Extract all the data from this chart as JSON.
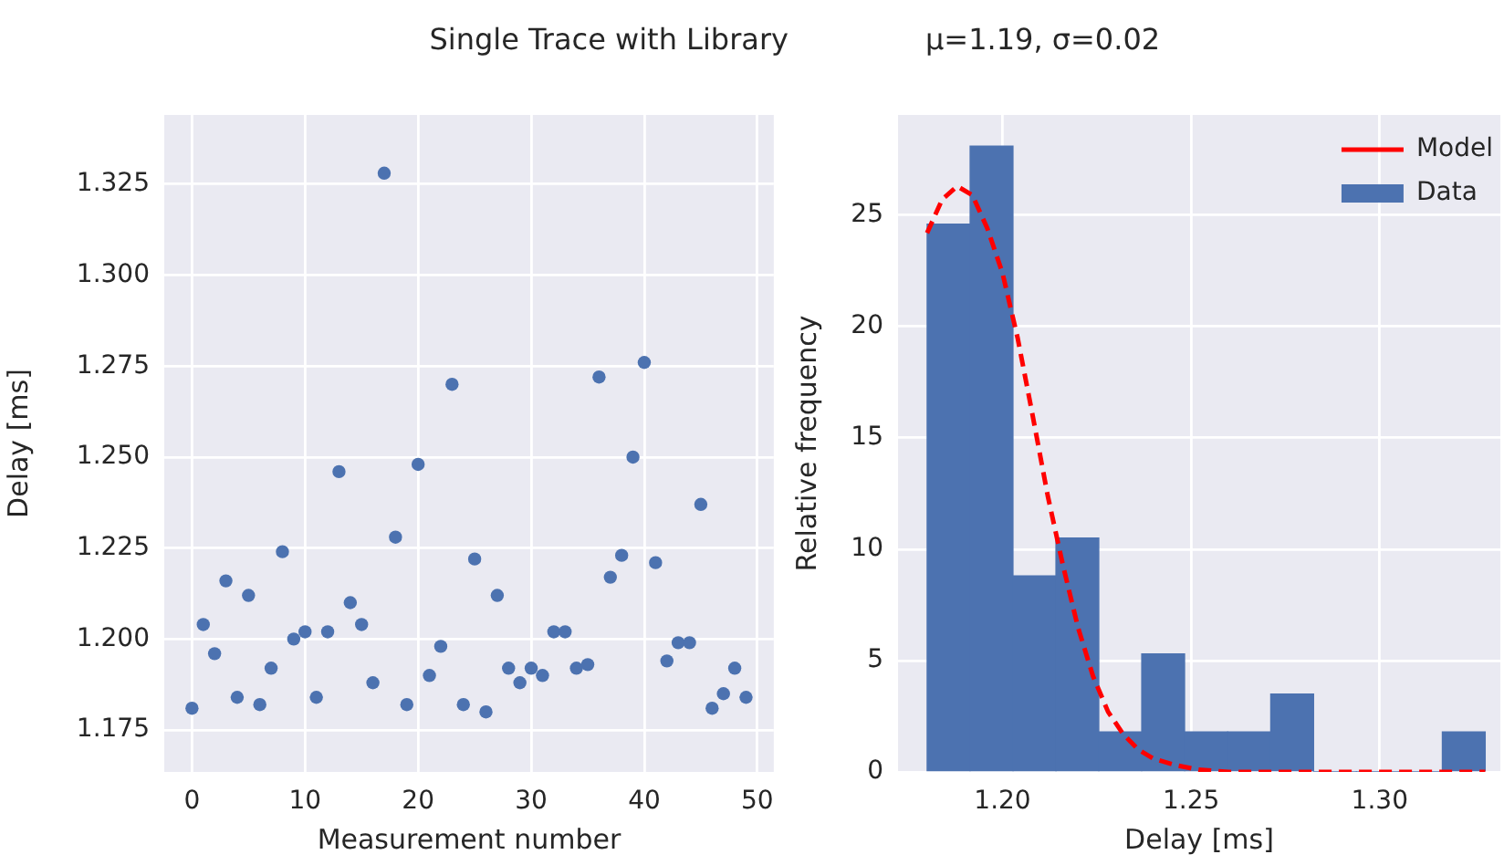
{
  "chart_data": [
    {
      "type": "scatter",
      "title": "Single Trace with Library",
      "xlabel": "Measurement number",
      "ylabel": "Delay [ms]",
      "color": "#4c72b0",
      "marker": "circle",
      "grid": true,
      "x": [
        0,
        1,
        2,
        3,
        4,
        5,
        6,
        7,
        8,
        9,
        10,
        11,
        12,
        13,
        14,
        15,
        16,
        17,
        18,
        19,
        20,
        21,
        22,
        23,
        24,
        25,
        26,
        27,
        28,
        29,
        30,
        31,
        32,
        33,
        34,
        35,
        36,
        37,
        38,
        39,
        40,
        41,
        42,
        43,
        44,
        45,
        46,
        47,
        48,
        49
      ],
      "values": [
        1.181,
        1.204,
        1.196,
        1.216,
        1.184,
        1.212,
        1.182,
        1.192,
        1.224,
        1.2,
        1.202,
        1.184,
        1.202,
        1.246,
        1.21,
        1.204,
        1.188,
        1.328,
        1.228,
        1.182,
        1.248,
        1.19,
        1.198,
        1.27,
        1.182,
        1.222,
        1.18,
        1.212,
        1.192,
        1.188,
        1.192,
        1.19,
        1.202,
        1.202,
        1.192,
        1.193,
        1.272,
        1.217,
        1.223,
        1.25,
        1.276,
        1.221,
        1.194,
        1.199,
        1.199,
        1.237,
        1.181,
        1.185,
        1.192,
        1.184
      ],
      "xlim": [
        -2.45,
        51.45
      ],
      "xticks": [
        0,
        10,
        20,
        30,
        40,
        50
      ],
      "ylim": [
        1.1635,
        1.344
      ],
      "yticks": [
        1.175,
        {
          "value": 1.2,
          "label": "1.200"
        },
        1.225,
        {
          "value": 1.25,
          "label": "1.250"
        },
        1.275,
        {
          "value": 1.3,
          "label": "1.300"
        },
        1.325
      ]
    },
    {
      "type": "histogram",
      "title": "μ=1.19, σ=0.02",
      "xlabel": "Delay [ms]",
      "ylabel": "Relative frequency",
      "grid": true,
      "legend": "top right",
      "bins": [
        1.18,
        1.1914,
        1.2028,
        1.2142,
        1.2255,
        1.2369,
        1.2483,
        1.2597,
        1.2711,
        1.2825,
        1.2938,
        1.3052,
        1.3166,
        1.328
      ],
      "series": [
        {
          "name": "Model",
          "type": "line",
          "color": "#ff0000",
          "line_style": "dashed",
          "x": [
            1.18,
            1.184,
            1.188,
            1.192,
            1.196,
            1.2,
            1.204,
            1.208,
            1.212,
            1.216,
            1.22,
            1.224,
            1.228,
            1.232,
            1.236,
            1.24,
            1.246,
            1.252,
            1.26,
            1.28,
            1.3,
            1.328
          ],
          "values": [
            24.2,
            25.7,
            26.3,
            25.9,
            24.4,
            22.4,
            19.5,
            16.0,
            12.4,
            9.3,
            6.5,
            4.3,
            2.7,
            1.7,
            1.0,
            0.6,
            0.3,
            0.1,
            0,
            0,
            0,
            0
          ]
        },
        {
          "name": "Data",
          "type": "histogram",
          "color": "#4c72b0",
          "values": [
            24.6,
            28.1,
            8.8,
            10.5,
            1.8,
            5.3,
            1.8,
            1.8,
            3.5,
            0,
            0,
            0,
            1.8
          ]
        }
      ],
      "xlim": [
        1.1723,
        1.332
      ],
      "xticks": [
        {
          "value": 1.2,
          "label": "1.20"
        },
        1.25,
        {
          "value": 1.3,
          "label": "1.30"
        }
      ],
      "ylim": [
        0,
        29.5
      ],
      "yticks": [
        0,
        5,
        10,
        15,
        20,
        25
      ]
    }
  ]
}
